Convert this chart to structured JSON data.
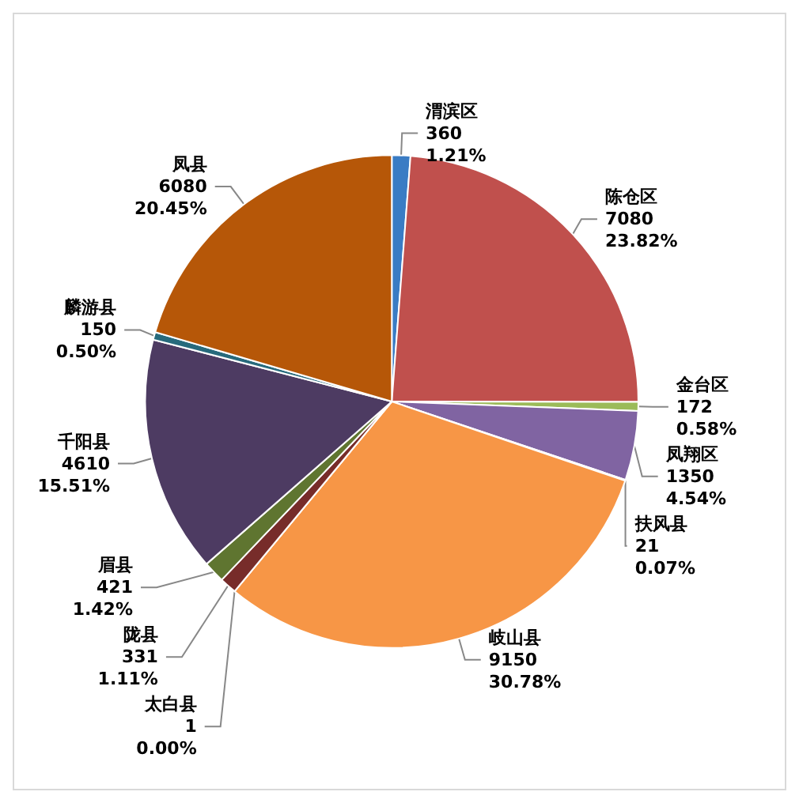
{
  "chart_data": {
    "type": "pie",
    "categories": [
      "渭滨区",
      "陈仓区",
      "金台区",
      "凤翔区",
      "扶风县",
      "岐山县",
      "太白县",
      "陇县",
      "眉县",
      "千阳县",
      "麟游县",
      "凤县"
    ],
    "values": [
      360,
      7080,
      172,
      1350,
      21,
      9150,
      1,
      331,
      421,
      4610,
      150,
      6080
    ],
    "colors": [
      "#3a7cc4",
      "#c0504d",
      "#9bbb59",
      "#8064a2",
      "#4bacc6",
      "#f79646",
      "#2c4d75",
      "#772c2a",
      "#5f7530",
      "#4d3b62",
      "#276a7c",
      "#b65708"
    ],
    "value_labels": [
      "360\n1.21%",
      "7080\n23.82%",
      "172\n0.58%",
      "1350\n4.54%",
      "21\n0.07%",
      "9150\n30.78%",
      "1\n0.00%",
      "331\n1.11%",
      "421\n1.42%",
      "4610\n15.51%",
      "150\n0.50%",
      "6080\n20.45%"
    ],
    "legend": false
  }
}
